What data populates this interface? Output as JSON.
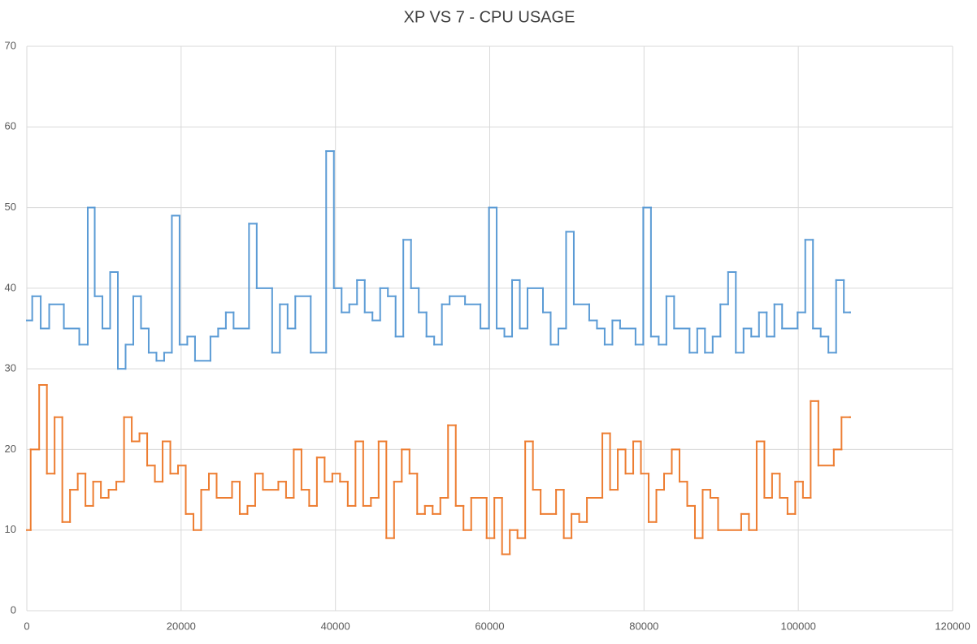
{
  "chart_data": {
    "type": "step",
    "title": "XP VS 7 - CPU USAGE",
    "xlim": [
      0,
      120000
    ],
    "xticks": [
      0,
      20000,
      40000,
      60000,
      80000,
      100000,
      120000
    ],
    "ylim": [
      0,
      70
    ],
    "yticks": [
      0,
      10,
      20,
      30,
      40,
      50,
      60,
      70
    ],
    "grid": true,
    "series": [
      {
        "color": "#5b9bd5",
        "x": [
          0,
          700,
          1800,
          2900,
          4800,
          6800,
          7900,
          8800,
          9800,
          10800,
          11800,
          12800,
          13800,
          14800,
          15800,
          16800,
          17800,
          18800,
          19800,
          20800,
          21800,
          23800,
          24800,
          25800,
          26800,
          28800,
          29800,
          31800,
          32800,
          33800,
          34800,
          36800,
          38800,
          39800,
          40800,
          41800,
          42800,
          43800,
          44800,
          45800,
          46800,
          47800,
          48800,
          49800,
          50800,
          51800,
          52800,
          53800,
          54800,
          56800,
          58800,
          59900,
          60900,
          61900,
          62900,
          63900,
          64900,
          66900,
          67900,
          68900,
          69900,
          70900,
          72900,
          73900,
          74900,
          75900,
          76900,
          78900,
          79900,
          80900,
          81900,
          82900,
          83900,
          85900,
          86900,
          87900,
          88900,
          89900,
          90900,
          91900,
          92900,
          93900,
          94900,
          95900,
          96900,
          97900,
          99900,
          100900,
          101900,
          102900,
          103900,
          104900,
          105900,
          106700
        ],
        "values": [
          36,
          39,
          35,
          38,
          35,
          33,
          50,
          39,
          35,
          42,
          30,
          33,
          39,
          35,
          32,
          31,
          32,
          49,
          33,
          34,
          31,
          34,
          35,
          37,
          35,
          48,
          40,
          32,
          38,
          35,
          39,
          32,
          57,
          40,
          37,
          38,
          41,
          37,
          36,
          40,
          39,
          34,
          46,
          40,
          37,
          34,
          33,
          38,
          39,
          38,
          35,
          50,
          35,
          34,
          41,
          35,
          40,
          37,
          33,
          35,
          47,
          38,
          36,
          35,
          33,
          36,
          35,
          33,
          50,
          34,
          33,
          39,
          35,
          32,
          35,
          32,
          34,
          38,
          42,
          32,
          35,
          34,
          37,
          34,
          38,
          35,
          37,
          46,
          35,
          34,
          32,
          41,
          37,
          37
        ]
      },
      {
        "color": "#ed7d31",
        "x": [
          0,
          500,
          1600,
          2600,
          3600,
          4600,
          5600,
          6600,
          7600,
          8600,
          9600,
          10600,
          11600,
          12600,
          13600,
          14600,
          15600,
          16600,
          17600,
          18600,
          19600,
          20600,
          21600,
          22600,
          23600,
          24600,
          26600,
          27600,
          28600,
          29600,
          30600,
          32600,
          33600,
          34600,
          35600,
          36600,
          37600,
          38600,
          39600,
          40600,
          41600,
          42600,
          43600,
          44600,
          45600,
          46600,
          47600,
          48600,
          49600,
          50600,
          51600,
          52600,
          53600,
          54600,
          55600,
          56600,
          57600,
          59600,
          60600,
          61600,
          62600,
          63600,
          64600,
          65600,
          66600,
          68600,
          69600,
          70600,
          71600,
          72600,
          74600,
          75600,
          76600,
          77600,
          78600,
          79600,
          80600,
          81600,
          82600,
          83600,
          84600,
          85600,
          86600,
          87600,
          88600,
          89600,
          92600,
          93600,
          94600,
          95600,
          96600,
          97600,
          98600,
          99600,
          100600,
          101600,
          102600,
          104600,
          105600,
          106700
        ],
        "values": [
          10,
          20,
          28,
          17,
          24,
          11,
          15,
          17,
          13,
          16,
          14,
          15,
          16,
          24,
          21,
          22,
          18,
          16,
          21,
          17,
          18,
          12,
          10,
          15,
          17,
          14,
          16,
          12,
          13,
          17,
          15,
          16,
          14,
          20,
          15,
          13,
          19,
          16,
          17,
          16,
          13,
          21,
          13,
          14,
          21,
          9,
          16,
          20,
          17,
          12,
          13,
          12,
          14,
          23,
          13,
          10,
          14,
          9,
          14,
          7,
          10,
          9,
          21,
          15,
          12,
          15,
          9,
          12,
          11,
          14,
          22,
          15,
          20,
          17,
          21,
          17,
          11,
          15,
          17,
          20,
          16,
          13,
          9,
          15,
          14,
          10,
          12,
          10,
          21,
          14,
          17,
          14,
          12,
          16,
          14,
          26,
          18,
          20,
          24,
          24
        ]
      }
    ]
  }
}
